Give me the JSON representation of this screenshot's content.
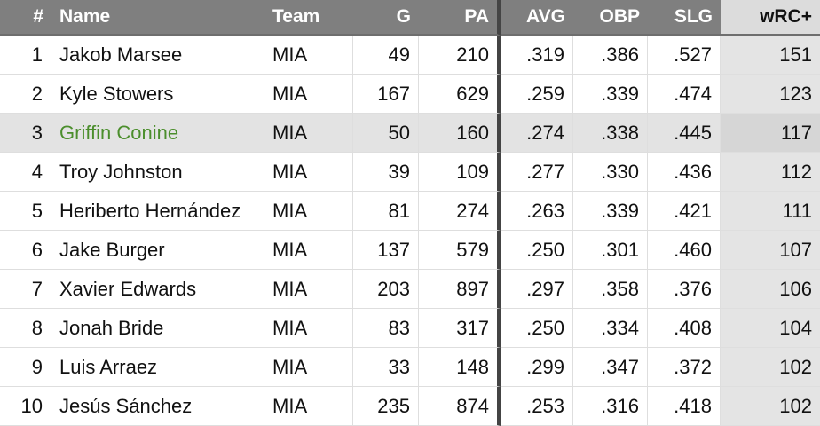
{
  "header": {
    "columns": [
      "#",
      "Name",
      "Team",
      "G",
      "PA",
      "AVG",
      "OBP",
      "SLG",
      "wRC+"
    ]
  },
  "table": {
    "rows": [
      [
        "1",
        "Jakob Marsee",
        "MIA",
        "49",
        "210",
        ".319",
        ".386",
        ".527",
        "151"
      ],
      [
        "2",
        "Kyle Stowers",
        "MIA",
        "167",
        "629",
        ".259",
        ".339",
        ".474",
        "123"
      ],
      [
        "3",
        "Griffin Conine",
        "MIA",
        "50",
        "160",
        ".274",
        ".338",
        ".445",
        "117"
      ],
      [
        "4",
        "Troy Johnston",
        "MIA",
        "39",
        "109",
        ".277",
        ".330",
        ".436",
        "112"
      ],
      [
        "5",
        "Heriberto Hernández",
        "MIA",
        "81",
        "274",
        ".263",
        ".339",
        ".421",
        "111"
      ],
      [
        "6",
        "Jake Burger",
        "MIA",
        "137",
        "579",
        ".250",
        ".301",
        ".460",
        "107"
      ],
      [
        "7",
        "Xavier Edwards",
        "MIA",
        "203",
        "897",
        ".297",
        ".358",
        ".376",
        "106"
      ],
      [
        "8",
        "Jonah Bride",
        "MIA",
        "83",
        "317",
        ".250",
        ".334",
        ".408",
        "104"
      ],
      [
        "9",
        "Luis Arraez",
        "MIA",
        "33",
        "148",
        ".299",
        ".347",
        ".372",
        "102"
      ],
      [
        "10",
        "Jesús Sánchez",
        "MIA",
        "235",
        "874",
        ".253",
        ".316",
        ".418",
        "102"
      ]
    ]
  }
}
